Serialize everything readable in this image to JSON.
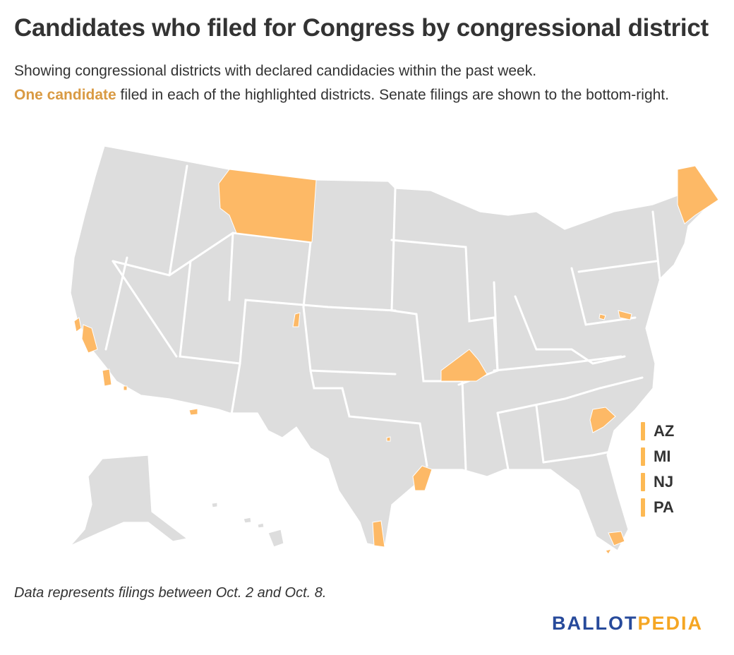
{
  "header": {
    "title": "Candidates who filed for Congress by congressional district",
    "subtitle_line1": "Showing congressional districts with declared candidacies within the past week.",
    "subtitle_highlight": "One candidate",
    "subtitle_rest": " filed in each of the highlighted districts. Senate filings are shown to the bottom-right."
  },
  "colors": {
    "land": "#dddddd",
    "border": "#ffffff",
    "highlight": "#fdb966",
    "highlight_text": "#d99a43",
    "brand_blue": "#274a9b",
    "brand_orange": "#f5a623"
  },
  "map": {
    "highlighted_regions": [
      "MT",
      "ME",
      "CA",
      "CO",
      "MD",
      "KY",
      "SC",
      "TX",
      "FL",
      "AZ"
    ]
  },
  "senate_legend": [
    "AZ",
    "MI",
    "NJ",
    "PA"
  ],
  "footer": {
    "note": "Data represents filings between Oct. 2 and Oct. 8.",
    "brand_part1": "BALLOT",
    "brand_part2": "PEDIA"
  }
}
